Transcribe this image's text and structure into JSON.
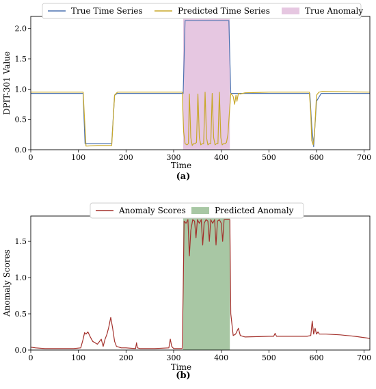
{
  "colors": {
    "true_series": "#4c72b0",
    "predicted_series": "#c8a82a",
    "true_anomaly": "#e6c7e1",
    "anomaly_score": "#a3302b",
    "predicted_anomaly": "#a8c7a4"
  },
  "chart_data": [
    {
      "type": "line",
      "caption": "(a)",
      "xlabel": "Time",
      "ylabel": "DPIT-301 Value",
      "xlim": [
        0,
        712
      ],
      "ylim": [
        0,
        2.2
      ],
      "xticks": [
        0,
        100,
        200,
        300,
        400,
        500,
        600,
        700
      ],
      "yticks": [
        0.0,
        0.5,
        1.0,
        1.5,
        2.0
      ],
      "legend_position": "top-center",
      "legend": [
        "True Time Series",
        "Predicted Time Series",
        "True Anomaly"
      ],
      "anomaly_span": [
        320,
        418
      ],
      "series": [
        {
          "name": "True Time Series",
          "x": [
            0,
            110,
            112,
            114,
            170,
            176,
            182,
            320,
            322,
            324,
            416,
            418,
            420,
            586,
            590,
            594,
            600,
            610,
            712
          ],
          "y": [
            0.93,
            0.93,
            0.5,
            0.1,
            0.1,
            0.9,
            0.93,
            0.93,
            1.5,
            2.13,
            2.13,
            1.5,
            0.93,
            0.93,
            0.4,
            0.05,
            0.8,
            0.93,
            0.93
          ]
        },
        {
          "name": "Predicted Time Series",
          "x": [
            0,
            110,
            113,
            116,
            140,
            170,
            176,
            182,
            318,
            321,
            324,
            328,
            331,
            333,
            336,
            339,
            342,
            345,
            348,
            351,
            354,
            357,
            360,
            363,
            366,
            369,
            372,
            375,
            378,
            381,
            384,
            387,
            390,
            393,
            396,
            399,
            402,
            405,
            408,
            411,
            414,
            417,
            420,
            425,
            428,
            431,
            433,
            436,
            440,
            450,
            500,
            585,
            588,
            590,
            593,
            596,
            600,
            605,
            612,
            712
          ],
          "y": [
            0.95,
            0.95,
            0.5,
            0.06,
            0.07,
            0.07,
            0.9,
            0.95,
            0.95,
            0.3,
            0.1,
            0.08,
            0.1,
            0.92,
            0.2,
            0.07,
            0.1,
            0.1,
            0.12,
            0.92,
            0.2,
            0.08,
            0.1,
            0.1,
            0.95,
            0.2,
            0.08,
            0.1,
            0.1,
            0.93,
            0.2,
            0.08,
            0.1,
            0.1,
            0.95,
            0.2,
            0.08,
            0.1,
            0.1,
            0.12,
            0.25,
            0.6,
            0.93,
            0.88,
            0.75,
            0.9,
            0.8,
            0.93,
            0.92,
            0.94,
            0.95,
            0.95,
            0.6,
            0.15,
            0.08,
            0.3,
            0.9,
            0.95,
            0.96,
            0.95
          ]
        }
      ]
    },
    {
      "type": "line",
      "caption": "(b)",
      "xlabel": "Time",
      "ylabel": "Anomaly Scores",
      "xlim": [
        0,
        712
      ],
      "ylim": [
        0,
        1.85
      ],
      "xticks": [
        0,
        100,
        200,
        300,
        400,
        500,
        600,
        700
      ],
      "yticks": [
        0.0,
        0.5,
        1.0,
        1.5
      ],
      "legend_position": "top-center",
      "legend": [
        "Anomaly Scores",
        "Predicted Anomaly"
      ],
      "anomaly_span": [
        320,
        418
      ],
      "series": [
        {
          "name": "Anomaly Scores",
          "x": [
            0,
            10,
            30,
            60,
            90,
            105,
            110,
            113,
            116,
            120,
            125,
            130,
            140,
            148,
            152,
            156,
            160,
            164,
            168,
            172,
            176,
            180,
            190,
            200,
            220,
            222,
            224,
            230,
            260,
            290,
            293,
            296,
            300,
            318,
            320,
            322,
            326,
            330,
            333,
            336,
            340,
            344,
            347,
            350,
            354,
            358,
            361,
            364,
            368,
            372,
            375,
            378,
            382,
            386,
            389,
            392,
            396,
            400,
            403,
            406,
            410,
            414,
            418,
            420,
            425,
            430,
            436,
            440,
            450,
            500,
            510,
            513,
            516,
            540,
            580,
            588,
            591,
            594,
            597,
            600,
            603,
            606,
            610,
            620,
            650,
            680,
            712
          ],
          "y": [
            0.04,
            0.03,
            0.02,
            0.02,
            0.02,
            0.03,
            0.15,
            0.24,
            0.22,
            0.25,
            0.18,
            0.12,
            0.08,
            0.15,
            0.05,
            0.15,
            0.22,
            0.32,
            0.45,
            0.3,
            0.12,
            0.05,
            0.03,
            0.03,
            0.02,
            0.1,
            0.03,
            0.02,
            0.02,
            0.03,
            0.15,
            0.05,
            0.02,
            0.02,
            0.8,
            1.78,
            1.75,
            1.8,
            1.3,
            1.65,
            1.8,
            1.78,
            1.55,
            1.8,
            1.75,
            1.8,
            1.45,
            1.75,
            1.8,
            1.78,
            1.5,
            1.8,
            1.75,
            1.8,
            1.45,
            1.78,
            1.8,
            1.75,
            1.5,
            1.8,
            1.8,
            1.8,
            1.8,
            0.5,
            0.2,
            0.22,
            0.3,
            0.2,
            0.18,
            0.19,
            0.19,
            0.23,
            0.19,
            0.19,
            0.19,
            0.2,
            0.4,
            0.22,
            0.3,
            0.22,
            0.25,
            0.22,
            0.22,
            0.22,
            0.21,
            0.19,
            0.16
          ]
        }
      ]
    }
  ]
}
